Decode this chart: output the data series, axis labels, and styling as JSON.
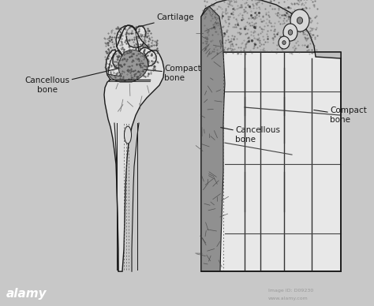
{
  "bg_color": "#c8c8c8",
  "footer_color": "#111111",
  "line_color": "#1a1a1a",
  "footer_text": "alamy",
  "footer_right1": "Image ID: D09230",
  "footer_right2": "www.alamy.com",
  "labels": {
    "cartilage": "Cartilage",
    "compact_bone_left": "Compact\nbone",
    "cancellous_bone_left": "Cancellous\nbone",
    "cancellous_bone_right": "Cancellous\nbone",
    "compact_bone_right": "Compact\nbone"
  }
}
